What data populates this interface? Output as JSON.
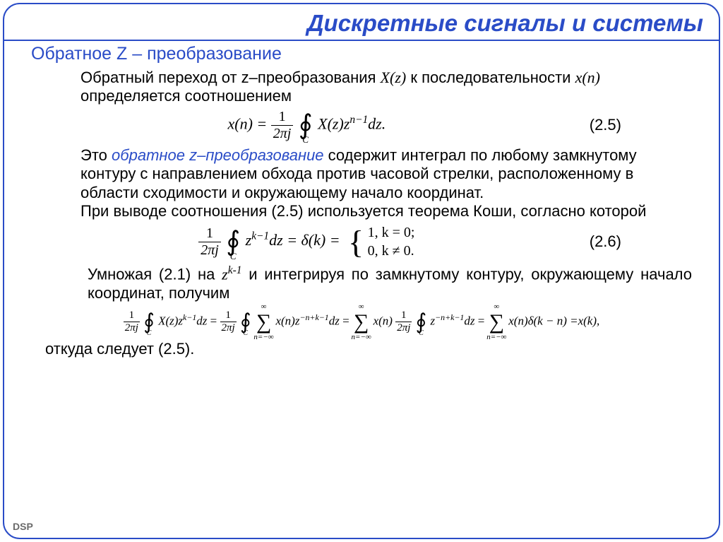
{
  "title": "Дискретные сигналы и системы",
  "section": "Обратное Z – преобразование",
  "p1a": "Обратный переход от z–преобразования ",
  "p1b": " к последовательности ",
  "p1c": " определяется соотношением",
  "xz": "X(z)",
  "xn": "x(n)",
  "eq25num": "(2.5)",
  "p2a": "Это ",
  "p2em": "обратное z–преобразование",
  "p2b": " содержит интеграл по любому замкнутому контуру с направлением обхода против часовой стрелки, расположенному в области сходимости и окружающему начало координат.",
  "p3": "При выводе соотношения (2.5) используется теорема Коши, согласно которой",
  "eq26num": "(2.6)",
  "case1": "1,  k = 0;",
  "case2": "0,  k ≠ 0.",
  "p4a": "Умножая (2.1) на ",
  "zk1": "z",
  "zk1sup": "k-1",
  "p4b": " и интегрируя по замкнутому контуру, окружающему начало координат, получим",
  "p5": "откуда следует (2.5).",
  "dsp": "DSP",
  "eq25_lhs": "x(n) =",
  "eq25_frac_num": "1",
  "eq25_frac_den": "2πj",
  "eq25_int_sub": "C",
  "eq25_body": "X(z)z",
  "eq25_exp": "n−1",
  "eq25_end": "dz.",
  "eq26_frac_num": "1",
  "eq26_frac_den": "2πj",
  "eq26_int_sub": "C",
  "eq26_z": "z",
  "eq26_exp": "k−1",
  "eq26_dz": "dz = δ(k) =",
  "long_frac_num": "1",
  "long_frac_den": "2πj",
  "long_C": "C",
  "long_inf": "∞",
  "long_ninf": "n=−∞",
  "long_p1": "X(z)z",
  "long_e1": "k−1",
  "long_dz": "dz",
  "long_p2": "x(n)z",
  "long_e2": "−n+k−1",
  "long_p3": "x(n)",
  "long_p4": "z",
  "long_p5": "x(n)δ(k − n)",
  "long_end": " =x(k),"
}
